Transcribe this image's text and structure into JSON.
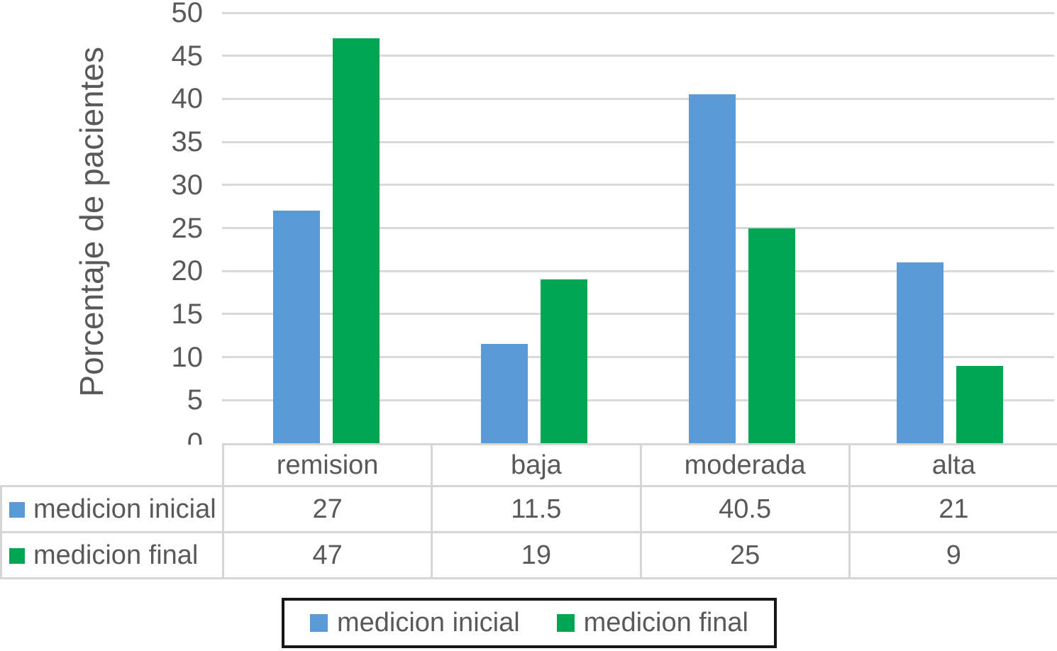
{
  "chart_data": {
    "type": "bar",
    "title": "",
    "categories": [
      "remision",
      "baja",
      "moderada",
      "alta"
    ],
    "series": [
      {
        "name": "medicion inicial",
        "color": "#5B9BD5",
        "values": [
          27,
          11.5,
          40.5,
          21
        ]
      },
      {
        "name": "medicion final",
        "color": "#00A651",
        "values": [
          47,
          19,
          25,
          9
        ]
      }
    ],
    "xlabel": "",
    "ylabel": "Porcentaje de pacientes",
    "ylim": [
      0,
      50
    ],
    "ytick_step": 5,
    "grid": true,
    "legend_position": "bottom",
    "show_data_table": true
  },
  "colors": {
    "text": "#595959",
    "gridline": "#D9D9D9",
    "table_border": "#D6D6D6",
    "legend_border": "#161616",
    "background": "#FFFFFF"
  }
}
